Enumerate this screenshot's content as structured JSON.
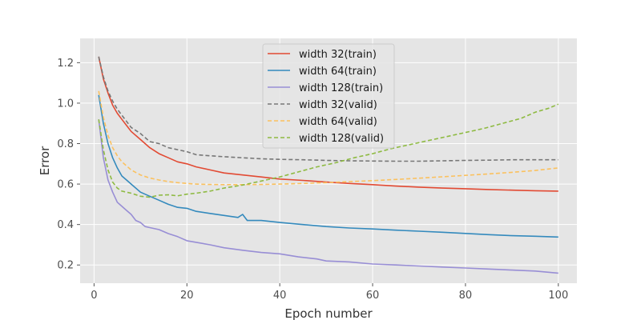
{
  "chart_data": {
    "type": "line",
    "xlabel": "Epoch number",
    "ylabel": "Error",
    "xlim": [
      -3,
      104
    ],
    "ylim": [
      0.11,
      1.32
    ],
    "x_ticks": [
      0,
      20,
      40,
      60,
      80,
      100
    ],
    "y_ticks": [
      0.2,
      0.4,
      0.6,
      0.8,
      1.0,
      1.2
    ],
    "x_tick_labels": [
      "0",
      "20",
      "40",
      "60",
      "80",
      "100"
    ],
    "y_tick_labels": [
      "0.2",
      "0.4",
      "0.6",
      "0.8",
      "1.0",
      "1.2"
    ],
    "grid": true,
    "legend_position": "top-center",
    "series": [
      {
        "name": "width 32(train)",
        "color": "#e24a33",
        "style": "solid",
        "points": [
          [
            1,
            1.23
          ],
          [
            2,
            1.12
          ],
          [
            3,
            1.05
          ],
          [
            4,
            0.99
          ],
          [
            5,
            0.95
          ],
          [
            6,
            0.92
          ],
          [
            7,
            0.89
          ],
          [
            8,
            0.86
          ],
          [
            10,
            0.82
          ],
          [
            12,
            0.78
          ],
          [
            14,
            0.75
          ],
          [
            16,
            0.73
          ],
          [
            18,
            0.71
          ],
          [
            20,
            0.7
          ],
          [
            22,
            0.685
          ],
          [
            25,
            0.67
          ],
          [
            28,
            0.655
          ],
          [
            32,
            0.645
          ],
          [
            36,
            0.635
          ],
          [
            40,
            0.625
          ],
          [
            45,
            0.618
          ],
          [
            50,
            0.61
          ],
          [
            55,
            0.603
          ],
          [
            60,
            0.597
          ],
          [
            65,
            0.59
          ],
          [
            70,
            0.585
          ],
          [
            75,
            0.58
          ],
          [
            80,
            0.577
          ],
          [
            85,
            0.573
          ],
          [
            90,
            0.57
          ],
          [
            95,
            0.567
          ],
          [
            100,
            0.565
          ]
        ]
      },
      {
        "name": "width 64(train)",
        "color": "#348abd",
        "style": "solid",
        "points": [
          [
            1,
            1.04
          ],
          [
            2,
            0.9
          ],
          [
            3,
            0.8
          ],
          [
            4,
            0.73
          ],
          [
            5,
            0.68
          ],
          [
            6,
            0.64
          ],
          [
            7,
            0.62
          ],
          [
            8,
            0.6
          ],
          [
            10,
            0.56
          ],
          [
            12,
            0.54
          ],
          [
            14,
            0.52
          ],
          [
            16,
            0.5
          ],
          [
            18,
            0.485
          ],
          [
            20,
            0.48
          ],
          [
            22,
            0.465
          ],
          [
            25,
            0.455
          ],
          [
            28,
            0.445
          ],
          [
            31,
            0.435
          ],
          [
            32,
            0.45
          ],
          [
            33,
            0.42
          ],
          [
            36,
            0.42
          ],
          [
            40,
            0.41
          ],
          [
            45,
            0.4
          ],
          [
            50,
            0.39
          ],
          [
            55,
            0.383
          ],
          [
            60,
            0.378
          ],
          [
            65,
            0.372
          ],
          [
            70,
            0.367
          ],
          [
            75,
            0.362
          ],
          [
            80,
            0.356
          ],
          [
            85,
            0.35
          ],
          [
            90,
            0.345
          ],
          [
            95,
            0.342
          ],
          [
            100,
            0.338
          ]
        ]
      },
      {
        "name": "width 128(train)",
        "color": "#988ed5",
        "style": "solid",
        "points": [
          [
            1,
            0.92
          ],
          [
            2,
            0.73
          ],
          [
            3,
            0.62
          ],
          [
            4,
            0.56
          ],
          [
            5,
            0.51
          ],
          [
            6,
            0.49
          ],
          [
            7,
            0.47
          ],
          [
            8,
            0.45
          ],
          [
            9,
            0.42
          ],
          [
            10,
            0.41
          ],
          [
            11,
            0.39
          ],
          [
            12,
            0.385
          ],
          [
            14,
            0.375
          ],
          [
            16,
            0.355
          ],
          [
            18,
            0.34
          ],
          [
            20,
            0.32
          ],
          [
            22,
            0.312
          ],
          [
            25,
            0.3
          ],
          [
            28,
            0.285
          ],
          [
            32,
            0.273
          ],
          [
            36,
            0.262
          ],
          [
            40,
            0.255
          ],
          [
            44,
            0.24
          ],
          [
            48,
            0.23
          ],
          [
            50,
            0.22
          ],
          [
            55,
            0.215
          ],
          [
            60,
            0.205
          ],
          [
            65,
            0.2
          ],
          [
            70,
            0.195
          ],
          [
            75,
            0.19
          ],
          [
            80,
            0.185
          ],
          [
            85,
            0.18
          ],
          [
            90,
            0.175
          ],
          [
            95,
            0.17
          ],
          [
            100,
            0.16
          ]
        ]
      },
      {
        "name": "width 32(valid)",
        "color": "#777777",
        "style": "dashed",
        "points": [
          [
            1,
            1.23
          ],
          [
            2,
            1.13
          ],
          [
            3,
            1.06
          ],
          [
            4,
            1.01
          ],
          [
            5,
            0.97
          ],
          [
            6,
            0.94
          ],
          [
            7,
            0.91
          ],
          [
            8,
            0.88
          ],
          [
            10,
            0.85
          ],
          [
            12,
            0.81
          ],
          [
            14,
            0.8
          ],
          [
            16,
            0.78
          ],
          [
            18,
            0.77
          ],
          [
            20,
            0.76
          ],
          [
            22,
            0.745
          ],
          [
            25,
            0.74
          ],
          [
            28,
            0.735
          ],
          [
            32,
            0.73
          ],
          [
            36,
            0.725
          ],
          [
            40,
            0.722
          ],
          [
            45,
            0.72
          ],
          [
            50,
            0.717
          ],
          [
            55,
            0.715
          ],
          [
            60,
            0.714
          ],
          [
            65,
            0.713
          ],
          [
            70,
            0.713
          ],
          [
            75,
            0.715
          ],
          [
            80,
            0.717
          ],
          [
            85,
            0.718
          ],
          [
            90,
            0.72
          ],
          [
            95,
            0.72
          ],
          [
            100,
            0.72
          ]
        ]
      },
      {
        "name": "width 64(valid)",
        "color": "#fbc15e",
        "style": "dashed",
        "points": [
          [
            1,
            1.06
          ],
          [
            2,
            0.93
          ],
          [
            3,
            0.84
          ],
          [
            4,
            0.78
          ],
          [
            5,
            0.74
          ],
          [
            6,
            0.71
          ],
          [
            7,
            0.69
          ],
          [
            8,
            0.67
          ],
          [
            10,
            0.645
          ],
          [
            12,
            0.63
          ],
          [
            14,
            0.62
          ],
          [
            16,
            0.612
          ],
          [
            18,
            0.607
          ],
          [
            20,
            0.603
          ],
          [
            22,
            0.6
          ],
          [
            25,
            0.598
          ],
          [
            28,
            0.597
          ],
          [
            32,
            0.597
          ],
          [
            36,
            0.598
          ],
          [
            40,
            0.6
          ],
          [
            45,
            0.603
          ],
          [
            50,
            0.607
          ],
          [
            55,
            0.612
          ],
          [
            60,
            0.617
          ],
          [
            65,
            0.623
          ],
          [
            70,
            0.629
          ],
          [
            75,
            0.636
          ],
          [
            80,
            0.643
          ],
          [
            85,
            0.65
          ],
          [
            90,
            0.658
          ],
          [
            95,
            0.667
          ],
          [
            100,
            0.68
          ]
        ]
      },
      {
        "name": "width 128(valid)",
        "color": "#8eba42",
        "style": "dashed",
        "points": [
          [
            1,
            0.92
          ],
          [
            2,
            0.77
          ],
          [
            3,
            0.67
          ],
          [
            4,
            0.61
          ],
          [
            5,
            0.58
          ],
          [
            6,
            0.565
          ],
          [
            7,
            0.56
          ],
          [
            8,
            0.555
          ],
          [
            10,
            0.54
          ],
          [
            12,
            0.535
          ],
          [
            14,
            0.545
          ],
          [
            16,
            0.547
          ],
          [
            18,
            0.542
          ],
          [
            20,
            0.55
          ],
          [
            22,
            0.555
          ],
          [
            25,
            0.565
          ],
          [
            28,
            0.58
          ],
          [
            32,
            0.595
          ],
          [
            36,
            0.615
          ],
          [
            40,
            0.635
          ],
          [
            44,
            0.66
          ],
          [
            48,
            0.685
          ],
          [
            52,
            0.705
          ],
          [
            56,
            0.73
          ],
          [
            60,
            0.75
          ],
          [
            64,
            0.775
          ],
          [
            68,
            0.795
          ],
          [
            72,
            0.815
          ],
          [
            76,
            0.835
          ],
          [
            80,
            0.855
          ],
          [
            84,
            0.875
          ],
          [
            88,
            0.9
          ],
          [
            92,
            0.925
          ],
          [
            95,
            0.955
          ],
          [
            98,
            0.975
          ],
          [
            100,
            0.995
          ]
        ]
      }
    ]
  }
}
